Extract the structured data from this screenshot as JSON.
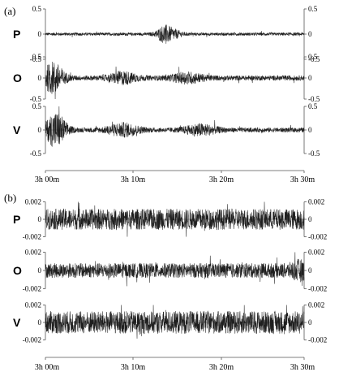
{
  "chart_data": [
    {
      "type": "line",
      "panel_label": "(a)",
      "channels": [
        "P",
        "O",
        "V"
      ],
      "yticks": [
        "0.5",
        "0",
        "-0.5"
      ],
      "ylim": [
        -0.5,
        0.5
      ],
      "xticks": [
        "3h 00m",
        "3h 10m",
        "3h 20m",
        "3h 30m"
      ],
      "series": [
        {
          "name": "P",
          "baseline_amplitude": 0.03,
          "bursts": [
            {
              "at": 0.46,
              "amplitude": 0.15,
              "width": 0.03
            },
            {
              "at": 0.5,
              "amplitude": 0.06,
              "width": 0.03
            }
          ]
        },
        {
          "name": "O",
          "baseline_amplitude": 0.06,
          "bursts": [
            {
              "at": 0.03,
              "amplitude": 0.35,
              "width": 0.04
            },
            {
              "at": 0.3,
              "amplitude": 0.12,
              "width": 0.05
            },
            {
              "at": 0.55,
              "amplitude": 0.1,
              "width": 0.06
            }
          ]
        },
        {
          "name": "V",
          "baseline_amplitude": 0.05,
          "bursts": [
            {
              "at": 0.04,
              "amplitude": 0.35,
              "width": 0.04
            },
            {
              "at": 0.3,
              "amplitude": 0.12,
              "width": 0.06
            },
            {
              "at": 0.6,
              "amplitude": 0.1,
              "width": 0.06
            }
          ]
        }
      ]
    },
    {
      "type": "line",
      "panel_label": "(b)",
      "channels": [
        "P",
        "O",
        "V"
      ],
      "yticks": [
        "0.002",
        "0",
        "-0.002"
      ],
      "ylim": [
        -0.002,
        0.002
      ],
      "xticks": [
        "3h 00m",
        "3h 10m",
        "3h 20m",
        "3h 30m"
      ],
      "series": [
        {
          "name": "P",
          "baseline_amplitude": 0.0012,
          "bursts": []
        },
        {
          "name": "O",
          "baseline_amplitude": 0.0008,
          "bursts": [
            {
              "at": 0.98,
              "amplitude": 0.0005,
              "width": 0.03
            }
          ]
        },
        {
          "name": "V",
          "baseline_amplitude": 0.0013,
          "bursts": []
        }
      ]
    }
  ]
}
